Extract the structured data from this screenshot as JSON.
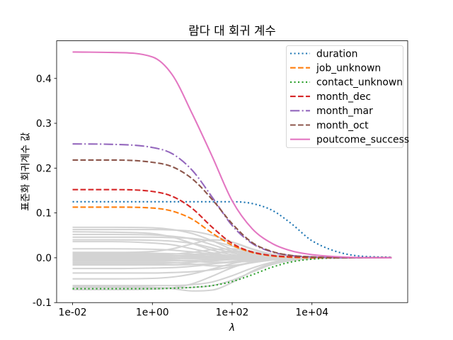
{
  "chart_data": {
    "type": "line",
    "title": "람다 대 회귀 계수",
    "xlabel": "λ",
    "ylabel": "표준화 회귀계수 값",
    "x_scale": "log",
    "xlim": [
      0.00398,
      2510000
    ],
    "ylim": [
      -0.1,
      0.484
    ],
    "grid": false,
    "legend_position": "upper right",
    "x_ticks": [
      {
        "value": 0.01,
        "label": "1e-02"
      },
      {
        "value": 1,
        "label": "1e+00"
      },
      {
        "value": 100,
        "label": "1e+02"
      },
      {
        "value": 10000,
        "label": "1e+04"
      }
    ],
    "y_ticks": [
      {
        "value": -0.1,
        "label": "-0.1"
      },
      {
        "value": 0.0,
        "label": "0.0"
      },
      {
        "value": 0.1,
        "label": "0.1"
      },
      {
        "value": 0.2,
        "label": "0.2"
      },
      {
        "value": 0.3,
        "label": "0.3"
      },
      {
        "value": 0.4,
        "label": "0.4"
      }
    ],
    "x": [
      0.01,
      0.1,
      1,
      3.162,
      10,
      31.62,
      100,
      316.2,
      1000,
      3162,
      10000,
      100000,
      1000000
    ],
    "series": [
      {
        "name": "duration",
        "color": "#1f77b4",
        "style": "dotted",
        "values": [
          0.125,
          0.125,
          0.125,
          0.125,
          0.125,
          0.125,
          0.125,
          0.121,
          0.106,
          0.075,
          0.038,
          0.006,
          0.001
        ]
      },
      {
        "name": "job_unknown",
        "color": "#ff7f0e",
        "style": "dashed",
        "values": [
          0.113,
          0.113,
          0.111,
          0.104,
          0.086,
          0.055,
          0.028,
          0.012,
          0.004,
          0.001,
          0.0,
          0.0,
          0.0
        ]
      },
      {
        "name": "contact_unknown",
        "color": "#2ca02c",
        "style": "dotted",
        "values": [
          -0.069,
          -0.069,
          -0.069,
          -0.068,
          -0.066,
          -0.062,
          -0.053,
          -0.038,
          -0.021,
          -0.009,
          -0.003,
          0.0,
          0.0
        ]
      },
      {
        "name": "month_dec",
        "color": "#d62728",
        "style": "dashed",
        "values": [
          0.152,
          0.152,
          0.148,
          0.137,
          0.11,
          0.068,
          0.032,
          0.013,
          0.005,
          0.002,
          0.001,
          0.0,
          0.0
        ]
      },
      {
        "name": "month_mar",
        "color": "#9467bd",
        "style": "dashdot",
        "values": [
          0.254,
          0.253,
          0.246,
          0.232,
          0.195,
          0.135,
          0.072,
          0.032,
          0.013,
          0.005,
          0.002,
          0.0,
          0.0
        ]
      },
      {
        "name": "month_oct",
        "color": "#8c564b",
        "style": "dashed",
        "values": [
          0.218,
          0.218,
          0.213,
          0.203,
          0.176,
          0.13,
          0.076,
          0.034,
          0.014,
          0.005,
          0.002,
          0.0,
          0.0
        ]
      },
      {
        "name": "poutcome_success",
        "color": "#e377c2",
        "style": "solid",
        "values": [
          0.459,
          0.458,
          0.448,
          0.408,
          0.321,
          0.226,
          0.127,
          0.065,
          0.032,
          0.015,
          0.007,
          0.001,
          0.0
        ]
      },
      {
        "color": "#d3d3d3",
        "style": "solid",
        "values": [
          0.068,
          0.068,
          0.067,
          0.063,
          0.054,
          0.038,
          0.019,
          0.007,
          0.003,
          0.001,
          0.0,
          0.0,
          0.0
        ]
      },
      {
        "color": "#d3d3d3",
        "style": "solid",
        "values": [
          0.063,
          0.063,
          0.063,
          0.062,
          0.059,
          0.05,
          0.035,
          0.019,
          0.008,
          0.003,
          0.001,
          0.0,
          0.0
        ]
      },
      {
        "color": "#d3d3d3",
        "style": "solid",
        "values": [
          0.058,
          0.057,
          0.054,
          0.046,
          0.032,
          0.017,
          0.007,
          0.003,
          0.001,
          0.0,
          0.0,
          0.0,
          0.0
        ]
      },
      {
        "color": "#d3d3d3",
        "style": "solid",
        "values": [
          0.052,
          0.052,
          0.051,
          0.048,
          0.042,
          0.029,
          0.015,
          0.006,
          0.002,
          0.001,
          0.0,
          0.0,
          0.0
        ]
      },
      {
        "color": "#d3d3d3",
        "style": "solid",
        "values": [
          0.046,
          0.046,
          0.046,
          0.045,
          0.043,
          0.037,
          0.026,
          0.014,
          0.006,
          0.002,
          0.001,
          0.0,
          0.0
        ]
      },
      {
        "color": "#d3d3d3",
        "style": "solid",
        "values": [
          0.04,
          0.04,
          0.039,
          0.037,
          0.032,
          0.022,
          0.011,
          0.004,
          0.002,
          0.001,
          0.0,
          0.0,
          0.0
        ]
      },
      {
        "color": "#d3d3d3",
        "style": "solid",
        "values": [
          0.036,
          0.036,
          0.033,
          0.029,
          0.02,
          0.011,
          0.004,
          0.002,
          0.001,
          0.0,
          0.0,
          0.0,
          0.0
        ]
      },
      {
        "color": "#d3d3d3",
        "style": "solid",
        "values": [
          0.02,
          0.02,
          0.019,
          0.017,
          0.013,
          0.008,
          0.004,
          0.002,
          0.001,
          0.0,
          0.0,
          0.0,
          0.0
        ]
      },
      {
        "color": "#d3d3d3",
        "style": "solid",
        "values": [
          0.012,
          0.012,
          0.014,
          0.02,
          0.031,
          0.04,
          0.035,
          0.02,
          0.008,
          0.003,
          0.001,
          0.0,
          0.0
        ]
      },
      {
        "color": "#d3d3d3",
        "style": "solid",
        "values": [
          0.01,
          0.01,
          0.01,
          0.009,
          0.008,
          0.006,
          0.003,
          0.001,
          0.0,
          0.0,
          0.0,
          0.0,
          0.0
        ]
      },
      {
        "color": "#d3d3d3",
        "style": "solid",
        "values": [
          0.007,
          0.007,
          0.007,
          0.008,
          0.012,
          0.018,
          0.02,
          0.013,
          0.006,
          0.002,
          0.001,
          0.0,
          0.0
        ]
      },
      {
        "color": "#d3d3d3",
        "style": "solid",
        "values": [
          0.005,
          0.005,
          0.005,
          0.005,
          0.004,
          0.003,
          0.001,
          0.0,
          0.0,
          0.0,
          0.0,
          0.0,
          0.0
        ]
      },
      {
        "color": "#d3d3d3",
        "style": "solid",
        "values": [
          0.003,
          0.003,
          0.003,
          0.004,
          0.006,
          0.01,
          0.013,
          0.01,
          0.005,
          0.002,
          0.001,
          0.0,
          0.0
        ]
      },
      {
        "color": "#d3d3d3",
        "style": "solid",
        "values": [
          0.001,
          0.001,
          0.001,
          0.001,
          0.001,
          0.001,
          0.0,
          0.0,
          0.0,
          0.0,
          0.0,
          0.0,
          0.0
        ]
      },
      {
        "color": "#d3d3d3",
        "style": "solid",
        "values": [
          -0.001,
          -0.001,
          -0.001,
          0.0,
          0.003,
          0.009,
          0.015,
          0.012,
          0.006,
          0.002,
          0.001,
          0.0,
          0.0
        ]
      },
      {
        "color": "#d3d3d3",
        "style": "solid",
        "values": [
          -0.003,
          -0.003,
          -0.003,
          -0.003,
          -0.002,
          -0.002,
          -0.001,
          0.0,
          0.0,
          0.0,
          0.0,
          0.0,
          0.0
        ]
      },
      {
        "color": "#d3d3d3",
        "style": "solid",
        "values": [
          -0.005,
          -0.005,
          -0.005,
          -0.006,
          -0.008,
          -0.01,
          -0.01,
          -0.007,
          -0.003,
          -0.001,
          0.0,
          0.0,
          0.0
        ]
      },
      {
        "color": "#d3d3d3",
        "style": "solid",
        "values": [
          -0.007,
          -0.007,
          -0.007,
          -0.007,
          -0.006,
          -0.004,
          -0.002,
          -0.001,
          0.0,
          0.0,
          0.0,
          0.0,
          0.0
        ]
      },
      {
        "color": "#d3d3d3",
        "style": "solid",
        "values": [
          -0.01,
          -0.01,
          -0.01,
          -0.011,
          -0.014,
          -0.018,
          -0.017,
          -0.011,
          -0.005,
          -0.002,
          -0.001,
          0.0,
          0.0
        ]
      },
      {
        "color": "#d3d3d3",
        "style": "solid",
        "values": [
          -0.013,
          -0.013,
          -0.013,
          -0.012,
          -0.01,
          -0.007,
          -0.004,
          -0.002,
          -0.001,
          0.0,
          0.0,
          0.0,
          0.0
        ]
      },
      {
        "color": "#d3d3d3",
        "style": "solid",
        "values": [
          -0.016,
          -0.016,
          -0.016,
          -0.016,
          -0.015,
          -0.013,
          -0.01,
          -0.006,
          -0.003,
          -0.001,
          0.0,
          0.0,
          0.0
        ]
      },
      {
        "color": "#d3d3d3",
        "style": "solid",
        "values": [
          -0.024,
          -0.024,
          -0.023,
          -0.022,
          -0.019,
          -0.014,
          -0.008,
          -0.003,
          -0.001,
          0.0,
          0.0,
          0.0,
          0.0
        ]
      },
      {
        "color": "#d3d3d3",
        "style": "solid",
        "values": [
          -0.034,
          -0.034,
          -0.034,
          -0.033,
          -0.031,
          -0.027,
          -0.02,
          -0.011,
          -0.005,
          -0.002,
          -0.001,
          0.0,
          0.0
        ]
      },
      {
        "color": "#d3d3d3",
        "style": "solid",
        "values": [
          -0.047,
          -0.047,
          -0.046,
          -0.043,
          -0.036,
          -0.025,
          -0.013,
          -0.005,
          -0.002,
          -0.001,
          0.0,
          0.0,
          0.0
        ]
      },
      {
        "color": "#d3d3d3",
        "style": "solid",
        "values": [
          -0.062,
          -0.062,
          -0.062,
          -0.062,
          -0.06,
          -0.054,
          -0.04,
          -0.023,
          -0.01,
          -0.003,
          -0.001,
          0.0,
          0.0
        ]
      },
      {
        "color": "#d3d3d3",
        "style": "solid",
        "values": [
          -0.064,
          -0.064,
          -0.066,
          -0.069,
          -0.074,
          -0.072,
          -0.055,
          -0.03,
          -0.012,
          -0.004,
          -0.001,
          0.0,
          0.0
        ]
      },
      {
        "color": "#d3d3d3",
        "style": "solid",
        "values": [
          -0.067,
          -0.067,
          -0.067,
          -0.067,
          -0.066,
          -0.062,
          -0.05,
          -0.032,
          -0.015,
          -0.006,
          -0.002,
          0.0,
          0.0
        ]
      },
      {
        "color": "#d3d3d3",
        "style": "solid",
        "values": [
          -0.071,
          -0.071,
          -0.07,
          -0.067,
          -0.058,
          -0.041,
          -0.022,
          -0.009,
          -0.003,
          -0.001,
          0.0,
          0.0,
          0.0
        ]
      }
    ]
  }
}
